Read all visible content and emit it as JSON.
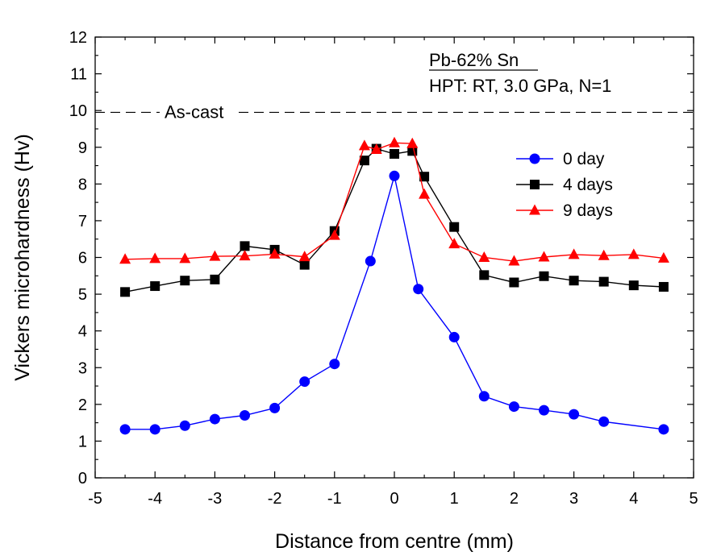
{
  "chart_data": {
    "type": "line",
    "title": "",
    "xlabel": "Distance from centre (mm)",
    "ylabel": "Vickers microhardness (Hv)",
    "xlim": [
      -5,
      5
    ],
    "ylim": [
      0,
      12
    ],
    "xticks": [
      -5,
      -4,
      -3,
      -2,
      -1,
      0,
      1,
      2,
      3,
      4,
      5
    ],
    "yticks": [
      0,
      1,
      2,
      3,
      4,
      5,
      6,
      7,
      8,
      9,
      10,
      11,
      12
    ],
    "grid": false,
    "legend_position": "right",
    "annotations": {
      "alloy": "Pb-62% Sn",
      "process": "HPT: RT, 3.0 GPa, N=1",
      "reference_label": "As-cast"
    },
    "reference_line": {
      "y": 9.95,
      "style": "dashed"
    },
    "series": [
      {
        "name": "0 day",
        "color": "#0000ff",
        "marker": "circle",
        "x": [
          -4.5,
          -4,
          -3.5,
          -3,
          -2.5,
          -2,
          -1.5,
          -1,
          -0.4,
          0,
          0.4,
          1,
          1.5,
          2,
          2.5,
          3,
          3.5,
          4.5
        ],
        "y": [
          1.32,
          1.32,
          1.42,
          1.6,
          1.7,
          1.9,
          2.62,
          3.1,
          5.9,
          8.22,
          5.14,
          3.83,
          2.22,
          1.94,
          1.84,
          1.73,
          1.53,
          1.32
        ]
      },
      {
        "name": "4 days",
        "color": "#000000",
        "marker": "square",
        "x": [
          -4.5,
          -4,
          -3.5,
          -3,
          -2.5,
          -2,
          -1.5,
          -1,
          -0.5,
          -0.3,
          0,
          0.3,
          0.5,
          1,
          1.5,
          2,
          2.5,
          3,
          3.5,
          4,
          4.5
        ],
        "y": [
          5.06,
          5.22,
          5.37,
          5.4,
          6.31,
          6.21,
          5.8,
          6.72,
          8.64,
          8.96,
          8.82,
          8.9,
          8.2,
          6.83,
          5.52,
          5.32,
          5.49,
          5.37,
          5.34,
          5.24,
          5.2
        ]
      },
      {
        "name": "9 days",
        "color": "#ff0000",
        "marker": "triangle",
        "x": [
          -4.5,
          -4,
          -3.5,
          -3,
          -2.5,
          -2,
          -1.5,
          -1,
          -0.5,
          -0.3,
          0,
          0.3,
          0.5,
          1,
          1.5,
          2,
          2.5,
          3,
          3.5,
          4,
          4.5
        ],
        "y": [
          5.95,
          5.97,
          5.97,
          6.03,
          6.04,
          6.09,
          6.02,
          6.6,
          9.04,
          8.94,
          9.12,
          9.1,
          7.72,
          6.37,
          6.0,
          5.9,
          6.01,
          6.08,
          6.05,
          6.08,
          5.98
        ]
      }
    ]
  }
}
